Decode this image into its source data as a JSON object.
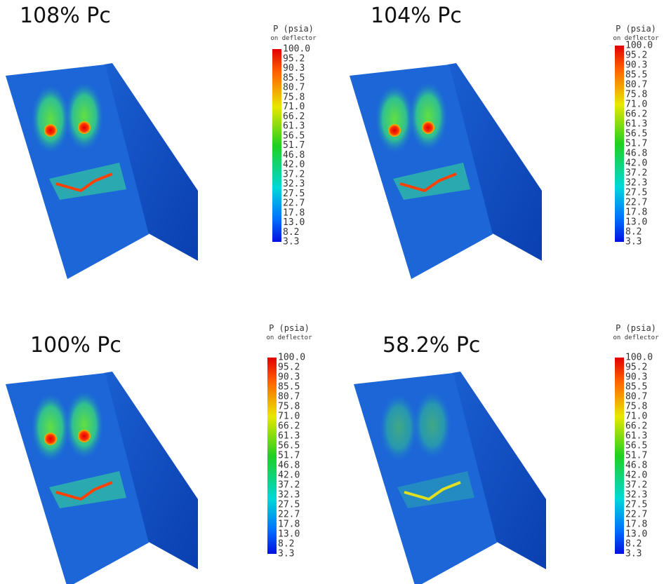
{
  "panels": [
    {
      "title": "108% Pc",
      "legend": {
        "title": "P (psia)",
        "subtitle": "on deflector",
        "ticks": [
          "100.0",
          "95.2",
          "90.3",
          "85.5",
          "80.7",
          "75.8",
          "71.0",
          "66.2",
          "61.3",
          "56.5",
          "51.7",
          "46.8",
          "42.0",
          "37.2",
          "32.3",
          "27.5",
          "22.7",
          "17.8",
          "13.0",
          "8.2",
          "3.3"
        ]
      }
    },
    {
      "title": "104% Pc",
      "legend": {
        "title": "P (psia)",
        "subtitle": "on deflector",
        "ticks": [
          "100.0",
          "95.2",
          "90.3",
          "85.5",
          "80.7",
          "75.8",
          "71.0",
          "66.2",
          "61.3",
          "56.5",
          "51.7",
          "46.8",
          "42.0",
          "37.2",
          "32.3",
          "27.5",
          "22.7",
          "17.8",
          "13.0",
          "8.2",
          "3.3"
        ]
      }
    },
    {
      "title": "100% Pc",
      "legend": {
        "title": "P (psia)",
        "subtitle": "on deflector",
        "ticks": [
          "100.0",
          "95.2",
          "90.3",
          "85.5",
          "80.7",
          "75.8",
          "71.0",
          "66.2",
          "61.3",
          "56.5",
          "51.7",
          "46.8",
          "42.0",
          "37.2",
          "32.3",
          "27.5",
          "22.7",
          "17.8",
          "13.0",
          "8.2",
          "3.3"
        ]
      }
    },
    {
      "title": "58.2% Pc",
      "legend": {
        "title": "P (psia)",
        "subtitle": "on deflector",
        "ticks": [
          "100.0",
          "95.2",
          "90.3",
          "85.5",
          "80.7",
          "75.8",
          "71.0",
          "66.2",
          "61.3",
          "56.5",
          "51.7",
          "46.8",
          "42.0",
          "37.2",
          "32.3",
          "27.5",
          "22.7",
          "17.8",
          "13.0",
          "8.2",
          "3.3"
        ]
      }
    }
  ]
}
